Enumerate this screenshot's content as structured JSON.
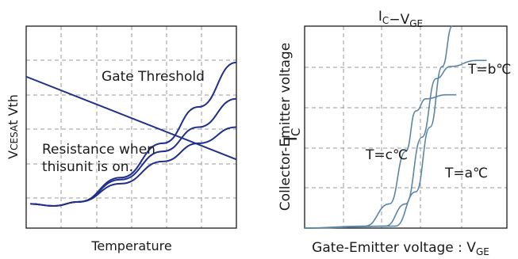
{
  "chart_data": [
    {
      "type": "line",
      "title": "",
      "xlabel": "Temperature",
      "ylabel": "Vcesat Vth",
      "grid": true,
      "annotations": [
        "Gate Threshold",
        "Resistance when thisunit is on."
      ],
      "series": [
        {
          "values": [
            [
              0.0,
              0.75
            ],
            [
              1.0,
              0.34
            ]
          ]
        },
        {
          "values": [
            [
              0.02,
              0.12
            ],
            [
              0.13,
              0.11
            ],
            [
              0.25,
              0.13
            ],
            [
              0.45,
              0.25
            ],
            [
              0.65,
              0.42
            ],
            [
              0.82,
              0.6
            ],
            [
              1.0,
              0.82
            ]
          ]
        },
        {
          "values": [
            [
              0.02,
              0.12
            ],
            [
              0.13,
              0.11
            ],
            [
              0.25,
              0.13
            ],
            [
              0.45,
              0.24
            ],
            [
              0.65,
              0.38
            ],
            [
              0.82,
              0.5
            ],
            [
              1.0,
              0.64
            ]
          ]
        },
        {
          "values": [
            [
              0.02,
              0.12
            ],
            [
              0.13,
              0.11
            ],
            [
              0.25,
              0.13
            ],
            [
              0.45,
              0.22
            ],
            [
              0.65,
              0.33
            ],
            [
              0.82,
              0.42
            ],
            [
              1.0,
              0.5
            ]
          ]
        }
      ]
    },
    {
      "type": "line",
      "title": "IC−VGE",
      "xlabel": "Gate-Emitter voltage : VGE",
      "ylabel": "Collector-Emitter voltage",
      "ylabel_secondary": "IC",
      "grid": true,
      "series": [
        {
          "name": "T=c℃",
          "values": [
            [
              0.0,
              0.0
            ],
            [
              0.3,
              0.01
            ],
            [
              0.42,
              0.12
            ],
            [
              0.5,
              0.38
            ],
            [
              0.55,
              0.58
            ],
            [
              0.6,
              0.64
            ],
            [
              0.7,
              0.66
            ],
            [
              0.75,
              0.66
            ]
          ]
        },
        {
          "name": "T=b℃",
          "values": [
            [
              0.0,
              0.0
            ],
            [
              0.4,
              0.01
            ],
            [
              0.5,
              0.12
            ],
            [
              0.58,
              0.45
            ],
            [
              0.65,
              0.74
            ],
            [
              0.72,
              0.8
            ],
            [
              0.85,
              0.83
            ],
            [
              0.9,
              0.83
            ]
          ]
        },
        {
          "name": "T=a℃",
          "values": [
            [
              0.0,
              0.0
            ],
            [
              0.45,
              0.01
            ],
            [
              0.55,
              0.18
            ],
            [
              0.62,
              0.5
            ],
            [
              0.68,
              0.8
            ],
            [
              0.73,
              1.0
            ]
          ]
        }
      ],
      "ylim": [
        0,
        1
      ],
      "xlim": [
        0,
        1
      ]
    }
  ]
}
